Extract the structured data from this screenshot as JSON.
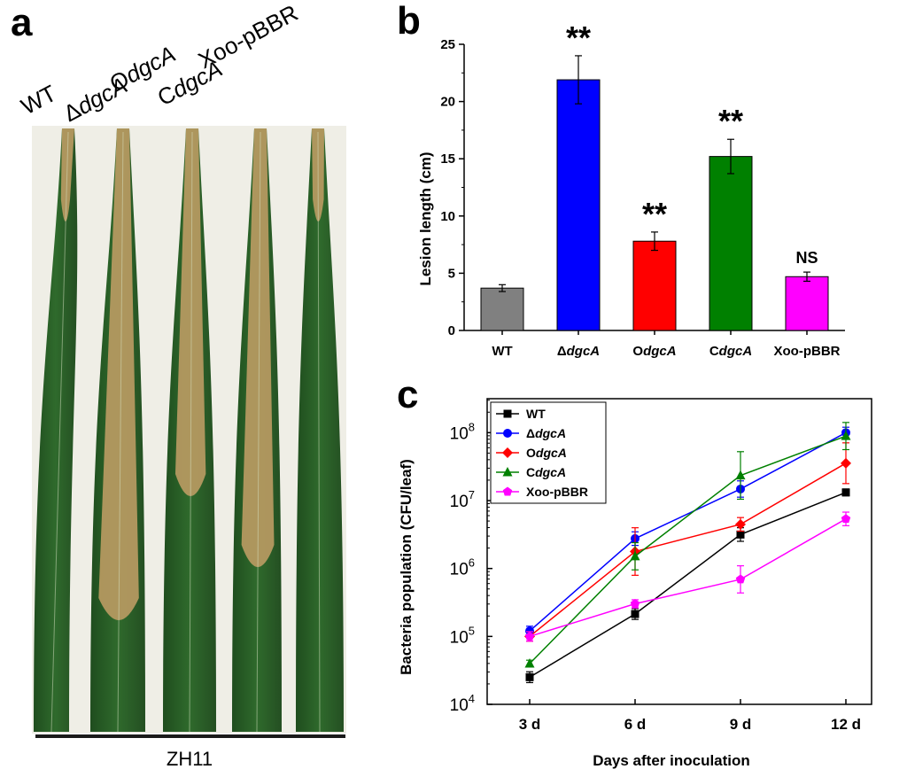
{
  "panel_a": {
    "letter": "a",
    "leaf_labels": [
      {
        "prefix": "",
        "italic": "",
        "text": "WT"
      },
      {
        "prefix": "Δ",
        "italic": "dgcA",
        "text": ""
      },
      {
        "prefix": "O",
        "italic": "dgcA",
        "text": ""
      },
      {
        "prefix": "C",
        "italic": "dgcA",
        "text": ""
      },
      {
        "prefix": "",
        "italic": "",
        "text": "Xoo-pBBR"
      }
    ],
    "cultivar_label": "ZH11",
    "colors": {
      "leaf_green": "#2f6a2c",
      "lesion_tan": "#b99a62",
      "background": "#efeee6"
    }
  },
  "panel_b": {
    "letter": "b",
    "chart_data": {
      "type": "bar",
      "ylabel": "Lesion length (cm)",
      "ylim": [
        0,
        25
      ],
      "yticks": [
        0,
        5,
        10,
        15,
        20,
        25
      ],
      "categories": [
        {
          "prefix": "",
          "italic": "",
          "text": "WT"
        },
        {
          "prefix": "Δ",
          "italic": "dgcA",
          "text": ""
        },
        {
          "prefix": "O",
          "italic": "dgcA",
          "text": ""
        },
        {
          "prefix": "C",
          "italic": "dgcA",
          "text": ""
        },
        {
          "prefix": "",
          "italic": "",
          "text": "Xoo-pBBR"
        }
      ],
      "values": [
        3.7,
        21.9,
        7.8,
        15.2,
        4.7
      ],
      "errors": [
        0.3,
        2.1,
        0.8,
        1.5,
        0.4
      ],
      "significance": [
        "",
        "**",
        "**",
        "**",
        "NS"
      ],
      "colors": [
        "#808080",
        "#0000ff",
        "#ff0000",
        "#008000",
        "#ff00ff"
      ]
    }
  },
  "panel_c": {
    "letter": "c",
    "chart_data": {
      "type": "line",
      "xlabel": "Days after inoculation",
      "ylabel": "Bacteria population (CFU/leaf)",
      "yscale": "log",
      "ylim_log10": [
        4,
        8.5
      ],
      "ytick_exponents": [
        4,
        5,
        6,
        7,
        8
      ],
      "ytick_base": "10",
      "x_categories": [
        "3 d",
        "6 d",
        "9 d",
        "12 d"
      ],
      "legend_position": "top-left",
      "series": [
        {
          "name": {
            "prefix": "",
            "italic": "",
            "text": "WT"
          },
          "color": "#000000",
          "marker": "square",
          "values_log10": [
            4.4,
            5.33,
            6.5,
            7.12
          ],
          "err_log10": [
            0.08,
            0.08,
            0.1,
            0.05
          ]
        },
        {
          "name": {
            "prefix": "Δ",
            "italic": "dgcA",
            "text": ""
          },
          "color": "#0000ff",
          "marker": "circle",
          "values_log10": [
            5.08,
            6.44,
            7.17,
            8.0
          ],
          "err_log10": [
            0.07,
            0.1,
            0.12,
            0.08
          ]
        },
        {
          "name": {
            "prefix": "O",
            "italic": "dgcA",
            "text": ""
          },
          "color": "#ff0000",
          "marker": "diamond",
          "values_log10": [
            5.0,
            6.25,
            6.65,
            7.55
          ],
          "err_log10": [
            0.07,
            0.35,
            0.1,
            0.3
          ]
        },
        {
          "name": {
            "prefix": "C",
            "italic": "dgcA",
            "text": ""
          },
          "color": "#008000",
          "marker": "triangle",
          "values_log10": [
            4.6,
            6.18,
            7.37,
            7.95
          ],
          "err_log10": [
            0.05,
            0.2,
            0.35,
            0.2
          ]
        },
        {
          "name": {
            "prefix": "",
            "italic": "",
            "text": "Xoo-pBBR"
          },
          "color": "#ff00ff",
          "marker": "pentagon",
          "values_log10": [
            5.0,
            5.48,
            5.84,
            6.73
          ],
          "err_log10": [
            0.07,
            0.06,
            0.2,
            0.1
          ]
        }
      ]
    }
  }
}
